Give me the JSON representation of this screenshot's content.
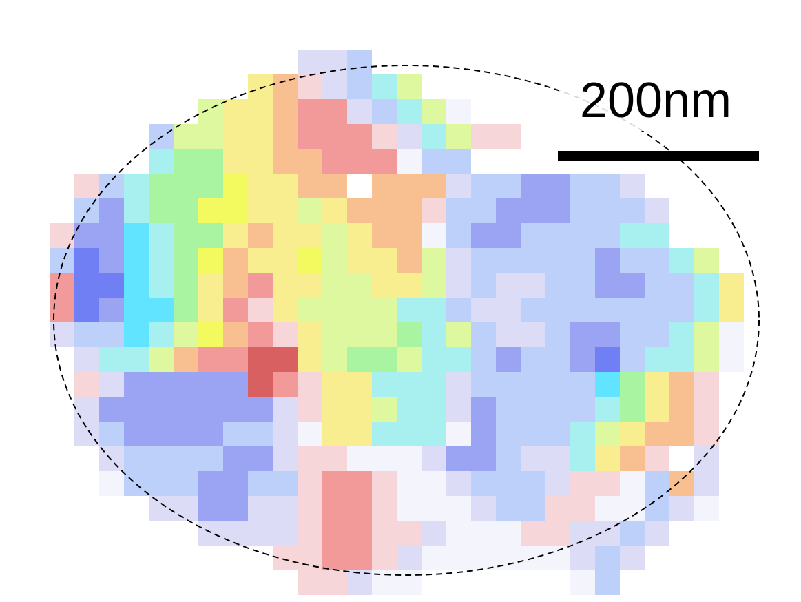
{
  "scale_bar": {
    "label": "200nm"
  }
}
